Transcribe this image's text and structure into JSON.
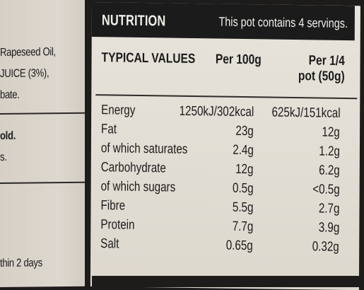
{
  "left_panel": {
    "line1": "Rapeseed Oil,",
    "line2": "JUICE (3%),",
    "line3": "bate.",
    "line4": "old.",
    "line5": "s.",
    "line6": "thin 2 days"
  },
  "nutrition": {
    "title": "NUTRITION",
    "servings_note": "This pot contains 4 servings.",
    "columns": {
      "label": "TYPICAL VALUES",
      "per100": "Per 100g",
      "portion_line1": "Per 1/4",
      "portion_line2": "pot (50g)"
    },
    "rows": [
      {
        "name": "Energy",
        "per100": "1250kJ/302kcal",
        "portion": "625kJ/151kcal"
      },
      {
        "name": "Fat",
        "per100": "23g",
        "portion": "12g"
      },
      {
        "name": "of which saturates",
        "per100": "2.4g",
        "portion": "1.2g"
      },
      {
        "name": "Carbohydrate",
        "per100": "12g",
        "portion": "6.2g"
      },
      {
        "name": "of which sugars",
        "per100": "0.5g",
        "portion": "<0.5g"
      },
      {
        "name": "Fibre",
        "per100": "5.5g",
        "portion": "2.7g"
      },
      {
        "name": "Protein",
        "per100": "7.7g",
        "portion": "3.9g"
      },
      {
        "name": "Salt",
        "per100": "0.65g",
        "portion": "0.32g"
      }
    ]
  },
  "colors": {
    "header_bg": "#1b1b1b",
    "label_bg": "#e3dfd6",
    "background": "#1e1c1a"
  }
}
